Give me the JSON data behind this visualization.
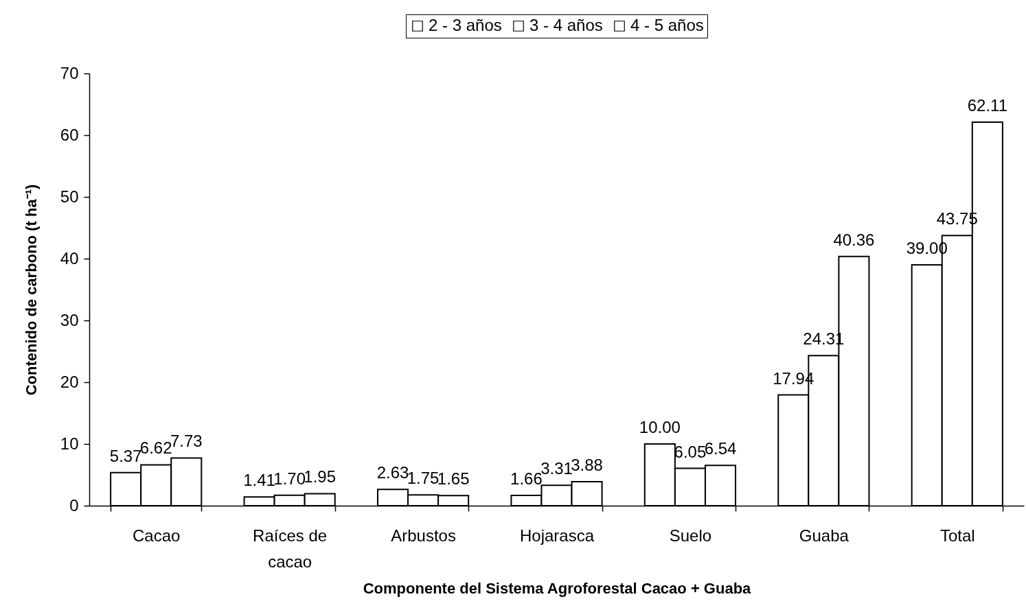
{
  "chart_data": {
    "type": "bar",
    "xlabel": "Componente del Sistema Agroforestal Cacao + Guaba",
    "ylabel": "Contenido de carbono (t ha⁻¹)",
    "categories": [
      "Cacao",
      "Raíces de cacao",
      "Arbustos",
      "Hojarasca",
      "Suelo",
      "Guaba",
      "Total"
    ],
    "series": [
      {
        "name": "2 - 3 años",
        "color": "#ffffff",
        "values": [
          5.37,
          1.41,
          2.63,
          1.66,
          10.0,
          17.94,
          39.0
        ],
        "value_labels": [
          "5.37",
          "1.41",
          "2.63",
          "1.66",
          "10.00",
          "17.94",
          "39.00"
        ]
      },
      {
        "name": "3 - 4 años",
        "color": "#ffffff",
        "values": [
          6.62,
          1.7,
          1.75,
          3.31,
          6.05,
          24.31,
          43.75
        ],
        "value_labels": [
          "6.62",
          "1.70",
          "1.75",
          "3.31",
          "6.05",
          "24.31",
          "43.75"
        ]
      },
      {
        "name": "4 - 5 años",
        "color": "#ffffff",
        "values": [
          7.73,
          1.95,
          1.65,
          3.88,
          6.54,
          40.36,
          62.11
        ],
        "value_labels": [
          "7.73",
          "1.95",
          "1.65",
          "3.88",
          "6.54",
          "40.36",
          "62.11"
        ]
      }
    ],
    "ylim": [
      0,
      70
    ],
    "yticks": [
      0,
      10,
      20,
      30,
      40,
      50,
      60,
      70
    ],
    "legend": "top"
  }
}
